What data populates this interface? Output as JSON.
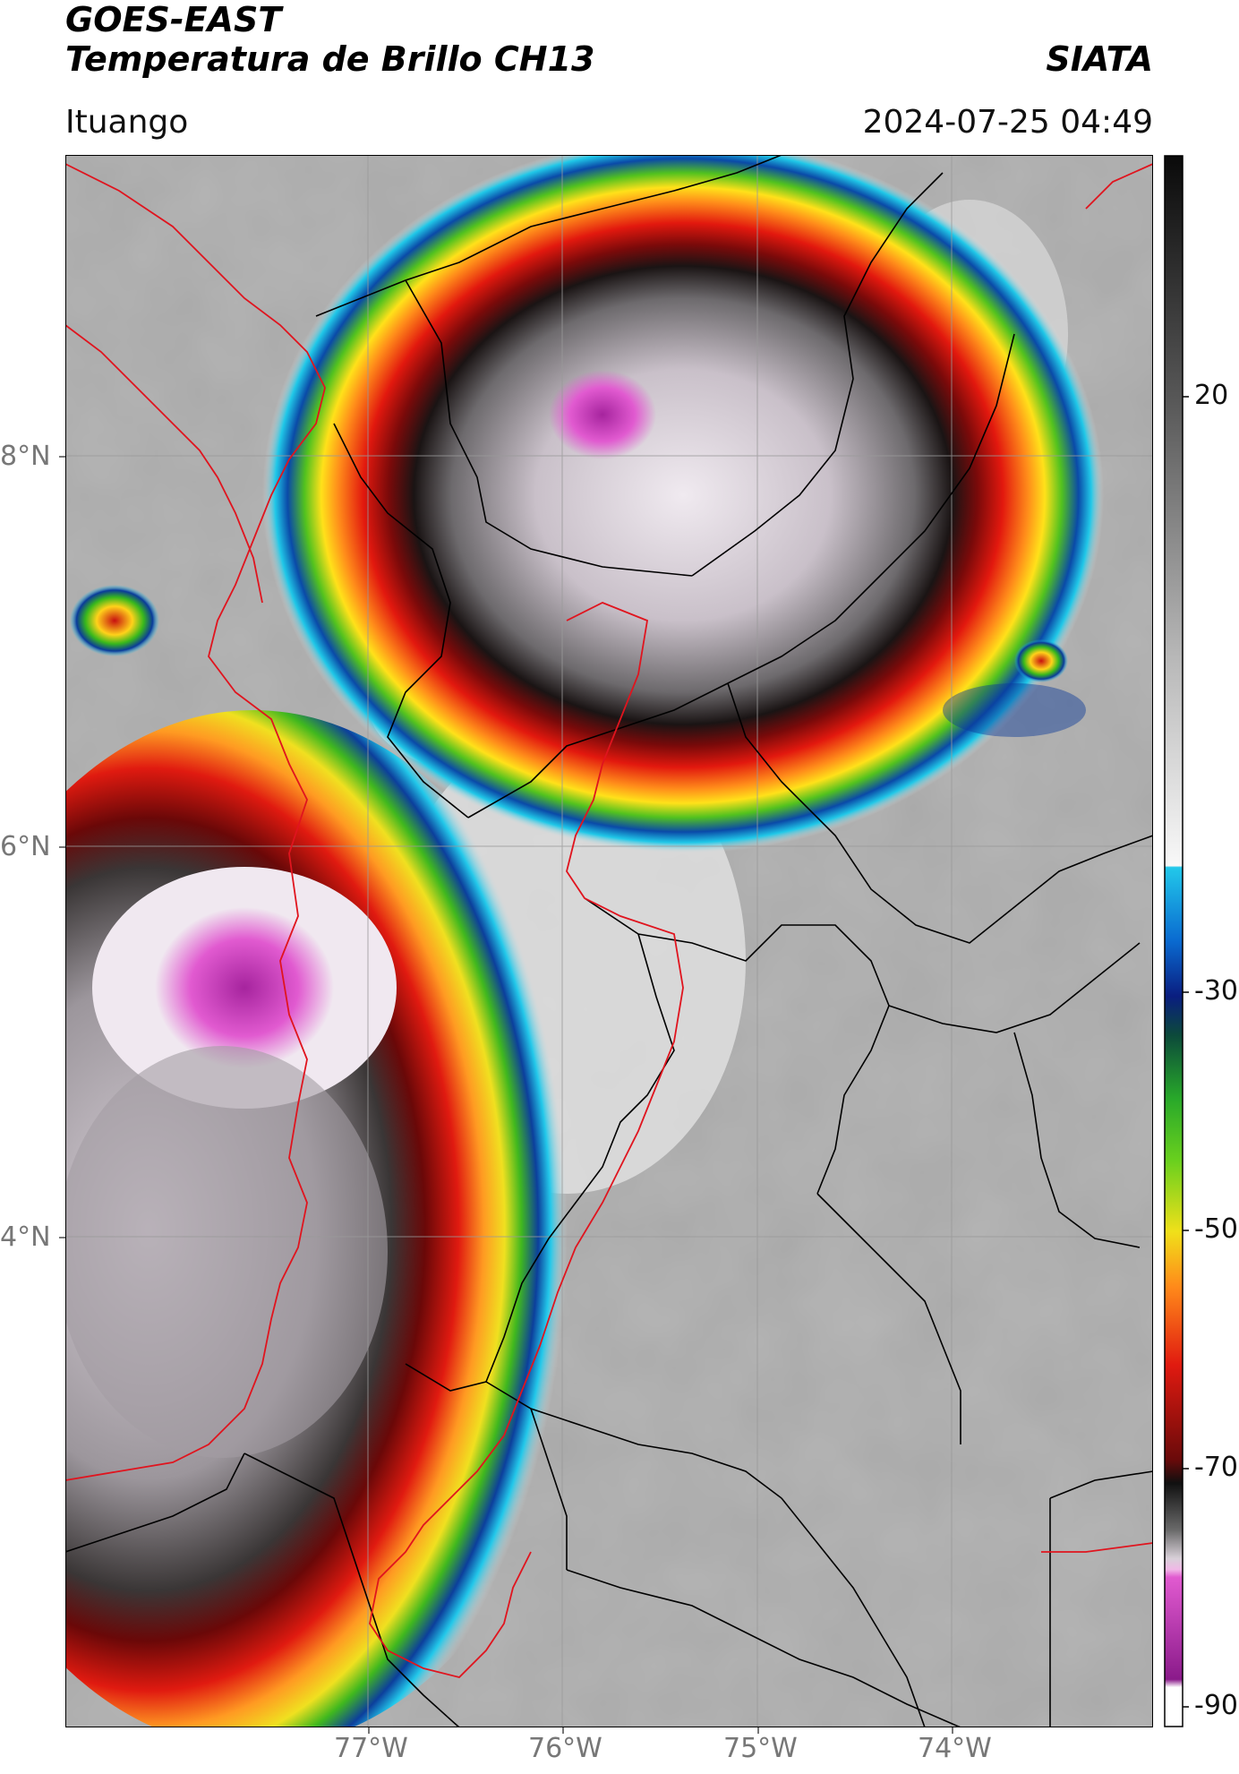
{
  "header": {
    "satellite": "GOES-EAST",
    "product": "Temperatura de Brillo CH13",
    "organization": "SIATA",
    "region": "Ituango",
    "datetime": "2024-07-25 04:49"
  },
  "map": {
    "lon_ticks": [
      "77°W",
      "76°W",
      "75°W",
      "74°W"
    ],
    "lat_ticks": [
      "8°N",
      "6°N",
      "4°N"
    ],
    "colors": {
      "land_gray": "#a9a9a9",
      "border_black": "#000000",
      "border_red": "#e0141e",
      "grid": "#9a9a9a"
    }
  },
  "colorbar": {
    "ticks": [
      "20",
      "-30",
      "-50",
      "-70",
      "-90"
    ],
    "tick_values": [
      20,
      -30,
      -50,
      -70,
      -90
    ],
    "range": [
      -90,
      40
    ]
  }
}
